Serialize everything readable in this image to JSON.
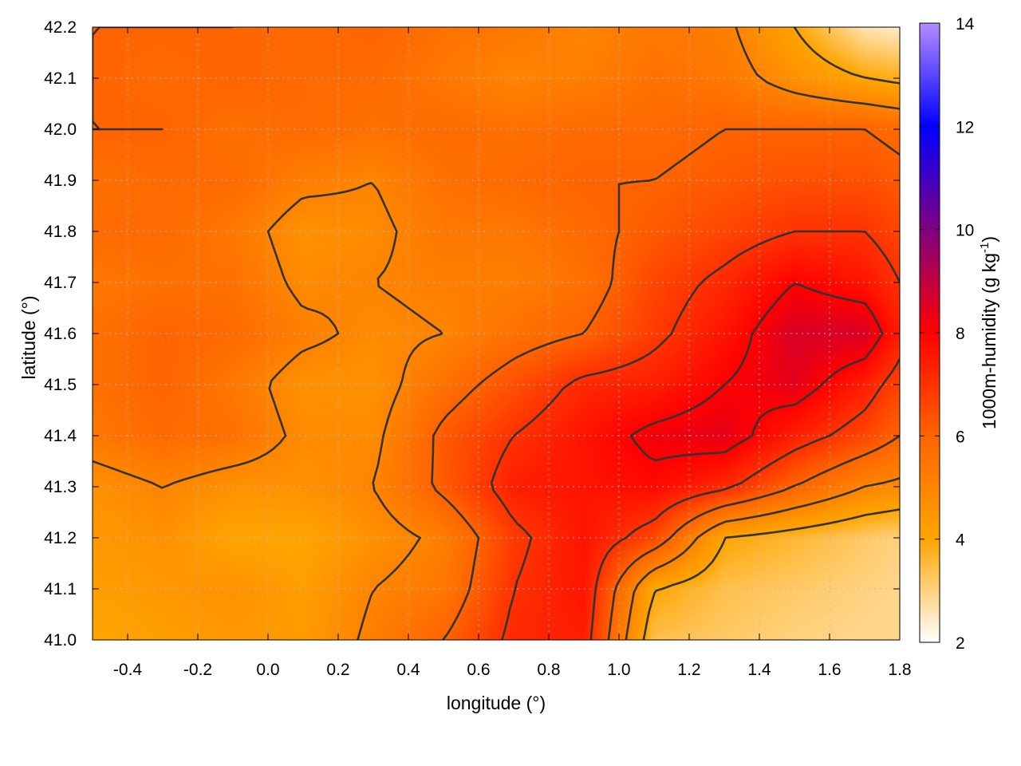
{
  "chart_data": {
    "type": "heatmap",
    "title": "",
    "xlabel": "longitude (°)",
    "ylabel": "latitude (°)",
    "colorbar_label": "1000m-humidity (g kg",
    "colorbar_label_sup": "-1",
    "colorbar_label_end": ")",
    "xlim": [
      -0.5,
      1.8
    ],
    "ylim": [
      41.0,
      42.2
    ],
    "clim": [
      2,
      14
    ],
    "x_ticks": [
      "-0.4",
      "-0.2",
      "0.0",
      "0.2",
      "0.4",
      "0.6",
      "0.8",
      "1.0",
      "1.2",
      "1.4",
      "1.6",
      "1.8"
    ],
    "x_tick_values": [
      -0.4,
      -0.2,
      0.0,
      0.2,
      0.4,
      0.6,
      0.8,
      1.0,
      1.2,
      1.4,
      1.6,
      1.8
    ],
    "y_ticks": [
      "41.0",
      "41.1",
      "41.2",
      "41.3",
      "41.4",
      "41.5",
      "41.6",
      "41.7",
      "41.8",
      "41.9",
      "42.0",
      "42.1",
      "42.2"
    ],
    "y_tick_values": [
      41.0,
      41.1,
      41.2,
      41.3,
      41.4,
      41.5,
      41.6,
      41.7,
      41.8,
      41.9,
      42.0,
      42.1,
      42.2
    ],
    "colorbar_ticks": [
      "2",
      "4",
      "6",
      "8",
      "10",
      "12",
      "14"
    ],
    "colorbar_tick_values": [
      2,
      4,
      6,
      8,
      10,
      12,
      14
    ],
    "colormap": [
      {
        "v": 2,
        "color": "#ffffff"
      },
      {
        "v": 4,
        "color": "#ffa500"
      },
      {
        "v": 6,
        "color": "#ff6400"
      },
      {
        "v": 8,
        "color": "#ff0000"
      },
      {
        "v": 10,
        "color": "#800080"
      },
      {
        "v": 12,
        "color": "#0000ff"
      },
      {
        "v": 14,
        "color": "#b48cff"
      }
    ],
    "grid": true,
    "contour_levels": [
      4,
      5,
      6,
      7,
      8
    ],
    "grid_x": [
      -0.5,
      -0.3,
      -0.1,
      0.1,
      0.3,
      0.5,
      0.7,
      0.9,
      1.1,
      1.3,
      1.5,
      1.7,
      1.8
    ],
    "grid_y": [
      41.0,
      41.1,
      41.2,
      41.3,
      41.4,
      41.5,
      41.6,
      41.7,
      41.8,
      41.9,
      42.0,
      42.1,
      42.2
    ],
    "grid_values": [
      [
        4.0,
        4.2,
        4.4,
        4.3,
        5.2,
        6.0,
        7.2,
        7.4,
        3.4,
        3.2,
        3.0,
        2.9,
        2.9
      ],
      [
        4.2,
        4.4,
        4.6,
        4.2,
        5.0,
        5.4,
        7.0,
        7.6,
        4.0,
        3.4,
        3.2,
        3.0,
        2.9
      ],
      [
        4.4,
        4.6,
        4.0,
        4.0,
        4.6,
        5.2,
        6.8,
        7.6,
        6.6,
        4.0,
        3.6,
        3.2,
        3.0
      ],
      [
        4.6,
        5.0,
        4.6,
        4.6,
        5.0,
        6.2,
        7.4,
        7.6,
        7.8,
        7.2,
        6.0,
        5.0,
        4.8
      ],
      [
        5.4,
        5.8,
        5.6,
        4.8,
        4.8,
        6.2,
        7.0,
        7.6,
        8.2,
        8.4,
        7.4,
        6.6,
        6.0
      ],
      [
        5.6,
        6.0,
        5.4,
        4.6,
        4.6,
        5.6,
        6.4,
        7.2,
        7.4,
        8.0,
        8.4,
        7.4,
        6.6
      ],
      [
        5.6,
        6.0,
        5.8,
        5.2,
        4.8,
        5.0,
        5.6,
        6.0,
        6.8,
        7.6,
        8.6,
        8.6,
        7.4
      ],
      [
        5.4,
        5.6,
        5.6,
        4.8,
        5.0,
        5.2,
        5.2,
        5.6,
        6.6,
        7.2,
        8.0,
        7.6,
        7.0
      ],
      [
        5.8,
        5.8,
        5.4,
        4.6,
        4.8,
        5.4,
        5.4,
        5.8,
        6.2,
        6.6,
        7.0,
        7.0,
        6.6
      ],
      [
        5.6,
        5.8,
        5.8,
        5.2,
        5.0,
        5.6,
        5.8,
        6.0,
        6.0,
        6.2,
        6.4,
        6.4,
        6.2
      ],
      [
        6.0,
        6.0,
        5.6,
        5.8,
        5.6,
        5.8,
        5.6,
        5.8,
        5.8,
        6.0,
        6.0,
        6.0,
        5.8
      ],
      [
        6.0,
        5.8,
        6.0,
        5.8,
        5.8,
        5.4,
        5.0,
        5.2,
        5.6,
        5.4,
        4.6,
        4.0,
        3.8
      ],
      [
        6.0,
        6.0,
        6.0,
        5.8,
        6.0,
        5.6,
        5.4,
        5.0,
        5.4,
        5.2,
        4.0,
        2.6,
        2.4
      ]
    ]
  }
}
